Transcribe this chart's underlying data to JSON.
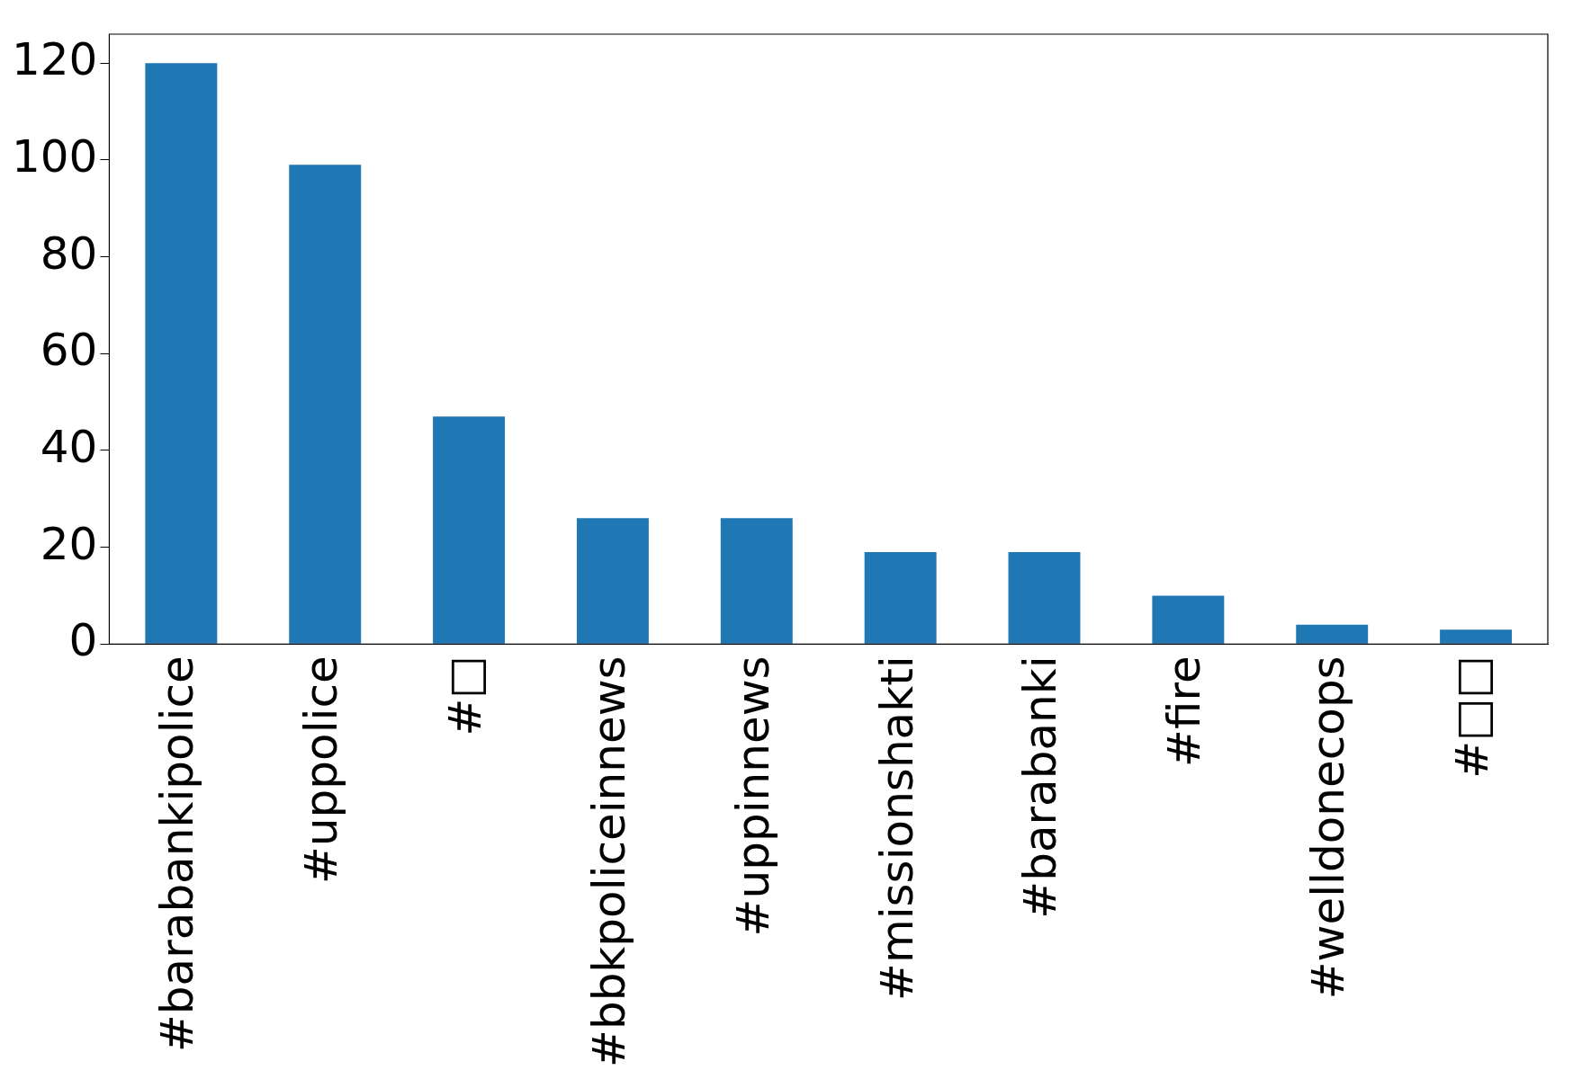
{
  "chart_data": {
    "type": "bar",
    "categories": [
      "#barabankipolice",
      "#uppolice",
      "#□",
      "#bbkpoliceinnews",
      "#uppinnews",
      "#missionshakti",
      "#barabanki",
      "#fire",
      "#welldonecops",
      "#□□"
    ],
    "values": [
      120,
      99,
      47,
      26,
      26,
      19,
      19,
      10,
      4,
      3
    ],
    "color": "#1f77b4",
    "ylim": [
      0,
      126
    ],
    "yticks": [
      0,
      20,
      40,
      60,
      80,
      100,
      120
    ],
    "grid": false,
    "legend": false
  }
}
